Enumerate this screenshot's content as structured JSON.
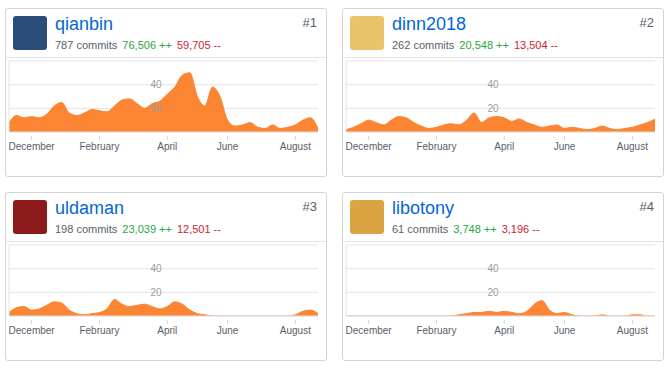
{
  "chart_data": [
    {
      "type": "area",
      "title": "qianbin",
      "subtitle": "787 commits",
      "annotations": [
        "#1",
        "76,506 ++",
        "59,705 --"
      ],
      "color": "#fb8532",
      "grid": true,
      "categories": [
        null,
        null,
        null,
        "December",
        null,
        null,
        null,
        null,
        null,
        null,
        null,
        null,
        "February",
        null,
        null,
        null,
        null,
        null,
        null,
        null,
        null,
        "April",
        null,
        null,
        null,
        null,
        null,
        null,
        null,
        "June",
        null,
        null,
        null,
        null,
        null,
        null,
        null,
        null,
        "August",
        null,
        null,
        null
      ],
      "values": [
        8,
        14,
        12,
        13,
        12,
        15,
        22,
        25,
        16,
        14,
        16,
        19,
        18,
        17,
        22,
        27,
        28,
        24,
        20,
        24,
        26,
        32,
        38,
        48,
        50,
        30,
        22,
        38,
        30,
        10,
        5,
        6,
        8,
        4,
        3,
        6,
        3,
        4,
        6,
        10,
        12,
        3
      ],
      "ylim": [
        0,
        60
      ],
      "yticks": [
        20,
        40
      ]
    },
    {
      "type": "area",
      "title": "dinn2018",
      "subtitle": "262 commits",
      "annotations": [
        "#2",
        "20,548 ++",
        "13,504 --"
      ],
      "color": "#fb8532",
      "grid": true,
      "categories": [
        null,
        null,
        null,
        "December",
        null,
        null,
        null,
        null,
        null,
        null,
        null,
        null,
        "February",
        null,
        null,
        null,
        null,
        null,
        null,
        null,
        null,
        "April",
        null,
        null,
        null,
        null,
        null,
        null,
        null,
        "June",
        null,
        null,
        null,
        null,
        null,
        null,
        null,
        null,
        "August",
        null,
        null,
        null
      ],
      "values": [
        2,
        4,
        7,
        10,
        8,
        6,
        10,
        13,
        12,
        8,
        5,
        3,
        4,
        6,
        7,
        6,
        10,
        16,
        8,
        12,
        13,
        12,
        9,
        11,
        8,
        6,
        4,
        5,
        6,
        3,
        4,
        3,
        2,
        3,
        5,
        3,
        2,
        3,
        4,
        6,
        8,
        11
      ],
      "ylim": [
        0,
        60
      ],
      "yticks": [
        20,
        40
      ]
    },
    {
      "type": "area",
      "title": "uldaman",
      "subtitle": "198 commits",
      "annotations": [
        "#3",
        "23,039 ++",
        "12,501 --"
      ],
      "color": "#fb8532",
      "grid": true,
      "categories": [
        null,
        null,
        null,
        "December",
        null,
        null,
        null,
        null,
        null,
        null,
        null,
        null,
        "February",
        null,
        null,
        null,
        null,
        null,
        null,
        null,
        null,
        "April",
        null,
        null,
        null,
        null,
        null,
        null,
        null,
        "June",
        null,
        null,
        null,
        null,
        null,
        null,
        null,
        null,
        "August",
        null,
        null,
        null
      ],
      "values": [
        3,
        7,
        8,
        5,
        6,
        9,
        12,
        11,
        5,
        2,
        1,
        2,
        3,
        6,
        14,
        10,
        8,
        9,
        10,
        8,
        6,
        8,
        12,
        10,
        5,
        2,
        1,
        0,
        0,
        0,
        0,
        0,
        0,
        0,
        0,
        0,
        0,
        0,
        1,
        4,
        5,
        2
      ],
      "ylim": [
        0,
        60
      ],
      "yticks": [
        20,
        40
      ]
    },
    {
      "type": "area",
      "title": "libotony",
      "subtitle": "61 commits",
      "annotations": [
        "#4",
        "3,748 ++",
        "3,196 --"
      ],
      "color": "#fb8532",
      "grid": true,
      "categories": [
        null,
        null,
        null,
        "December",
        null,
        null,
        null,
        null,
        null,
        null,
        null,
        null,
        "February",
        null,
        null,
        null,
        null,
        null,
        null,
        null,
        null,
        "April",
        null,
        null,
        null,
        null,
        null,
        null,
        null,
        "June",
        null,
        null,
        null,
        null,
        null,
        null,
        null,
        null,
        "August",
        null,
        null,
        null
      ],
      "values": [
        0,
        0,
        0,
        0,
        0,
        0,
        0,
        0,
        0,
        0,
        0,
        0,
        0,
        0,
        0,
        1,
        2,
        3,
        3,
        4,
        3,
        4,
        3,
        2,
        4,
        10,
        13,
        5,
        2,
        3,
        1,
        0,
        0,
        0,
        1,
        0,
        0,
        0,
        1,
        1,
        0,
        0
      ],
      "ylim": [
        0,
        60
      ],
      "yticks": [
        20,
        40
      ]
    }
  ]
}
